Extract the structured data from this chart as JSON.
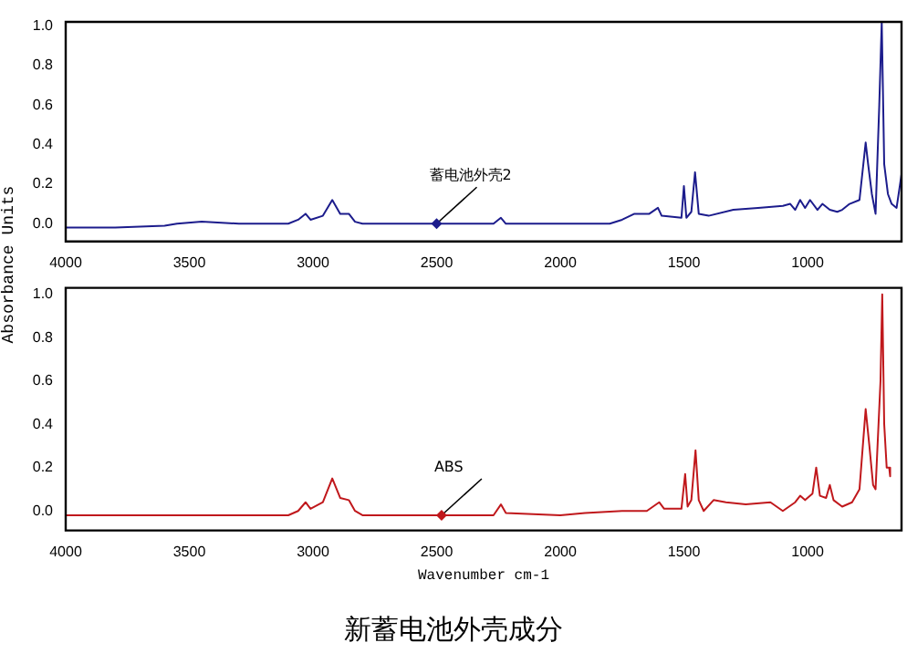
{
  "chart_data": [
    {
      "type": "line",
      "ylabel": "Absorbance Units",
      "annotations": [
        {
          "text": "蓄电池外壳2",
          "x": 2500,
          "y": 0.0
        }
      ],
      "series": [
        {
          "color": "#1c1c8c",
          "x": [
            4000,
            3800,
            3600,
            3550,
            3450,
            3300,
            3100,
            3060,
            3030,
            3010,
            2960,
            2922,
            2890,
            2855,
            2830,
            2800,
            2500,
            2270,
            2240,
            2220,
            2000,
            1800,
            1750,
            1700,
            1640,
            1605,
            1590,
            1510,
            1500,
            1490,
            1470,
            1455,
            1440,
            1400,
            1300,
            1200,
            1100,
            1070,
            1050,
            1030,
            1010,
            990,
            960,
            940,
            910,
            880,
            860,
            830,
            790,
            765,
            755,
            740,
            725,
            710,
            700,
            690,
            675,
            660,
            640,
            620
          ],
          "values": [
            -0.02,
            -0.02,
            -0.01,
            0.0,
            0.01,
            0.0,
            0.0,
            0.02,
            0.05,
            0.02,
            0.04,
            0.12,
            0.05,
            0.05,
            0.01,
            0.0,
            0.0,
            0.0,
            0.03,
            0.0,
            0.0,
            0.0,
            0.02,
            0.05,
            0.05,
            0.08,
            0.04,
            0.03,
            0.19,
            0.03,
            0.06,
            0.26,
            0.05,
            0.04,
            0.07,
            0.08,
            0.09,
            0.1,
            0.07,
            0.12,
            0.08,
            0.12,
            0.07,
            0.1,
            0.07,
            0.06,
            0.07,
            0.1,
            0.12,
            0.41,
            0.3,
            0.15,
            0.05,
            0.6,
            1.02,
            0.3,
            0.15,
            0.1,
            0.08,
            0.25
          ]
        }
      ],
      "xlim": [
        4000,
        620
      ],
      "xticks": [
        4000,
        3500,
        3000,
        2500,
        2000,
        1500,
        1000
      ],
      "ylim": [
        -0.09,
        1.02
      ],
      "yticks": [
        {
          "value": 0,
          "label": "0.0"
        },
        {
          "value": 0.2,
          "label": "0.2"
        },
        {
          "value": 0.4,
          "label": "0.4"
        },
        {
          "value": 0.6,
          "label": "0.6"
        },
        {
          "value": 0.8,
          "label": "0.8"
        },
        {
          "value": 1,
          "label": "1.0"
        }
      ],
      "grid": false,
      "legend": false
    },
    {
      "type": "line",
      "xlabel": "Wavenumber cm-1",
      "annotations": [
        {
          "text": "ABS",
          "x": 2480,
          "y": -0.02
        },
        "新蓄电池外壳成分"
      ],
      "series": [
        {
          "color": "#c0181c",
          "x": [
            4000,
            3100,
            3060,
            3030,
            3010,
            2960,
            2922,
            2890,
            2855,
            2830,
            2800,
            2270,
            2240,
            2220,
            2000,
            1900,
            1750,
            1650,
            1600,
            1580,
            1510,
            1495,
            1485,
            1470,
            1453,
            1440,
            1420,
            1380,
            1330,
            1250,
            1150,
            1100,
            1050,
            1030,
            1010,
            980,
            965,
            950,
            925,
            910,
            895,
            860,
            820,
            790,
            765,
            750,
            735,
            725,
            705,
            698,
            690,
            680,
            670,
            666
          ],
          "values": [
            -0.02,
            -0.02,
            0.0,
            0.04,
            0.01,
            0.04,
            0.15,
            0.06,
            0.05,
            0.0,
            -0.02,
            -0.02,
            0.03,
            -0.01,
            -0.02,
            -0.01,
            0.0,
            0.0,
            0.04,
            0.01,
            0.01,
            0.17,
            0.02,
            0.05,
            0.28,
            0.05,
            0.0,
            0.05,
            0.04,
            0.03,
            0.04,
            0.0,
            0.04,
            0.07,
            0.05,
            0.08,
            0.2,
            0.07,
            0.06,
            0.12,
            0.05,
            0.02,
            0.04,
            0.1,
            0.47,
            0.3,
            0.12,
            0.1,
            0.6,
            1.0,
            0.4,
            0.2,
            0.2,
            0.16
          ]
        }
      ],
      "xlim": [
        4000,
        620
      ],
      "xticks": [
        4000,
        3500,
        3000,
        2500,
        2000,
        1500,
        1000
      ],
      "ylim": [
        -0.09,
        1.03
      ],
      "yticks": [
        {
          "value": 0,
          "label": "0.0"
        },
        {
          "value": 0.2,
          "label": "0.2"
        },
        {
          "value": 0.4,
          "label": "0.4"
        },
        {
          "value": 0.6,
          "label": "0.6"
        },
        {
          "value": 0.8,
          "label": "0.8"
        },
        {
          "value": 1,
          "label": "1.0"
        }
      ],
      "grid": false,
      "legend": false
    }
  ]
}
